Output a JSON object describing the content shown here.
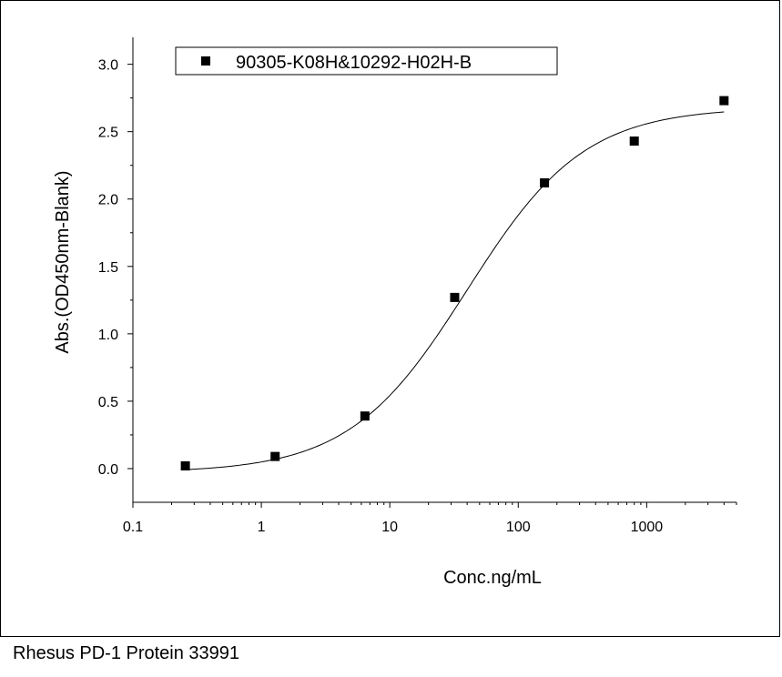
{
  "caption": "Rhesus PD-1 Protein 33991",
  "chart_data": {
    "type": "scatter",
    "xlabel": "Conc.ng/mL",
    "ylabel": "Abs.(OD450nm-Blank)",
    "xscale": "log",
    "xlim": [
      0.1,
      5000
    ],
    "ylim": [
      -0.25,
      3.2
    ],
    "xticks": [
      0.1,
      1,
      10,
      100,
      1000
    ],
    "xtick_labels": [
      "0.1",
      "1",
      "10",
      "100",
      "1000"
    ],
    "yticks": [
      0.0,
      0.5,
      1.0,
      1.5,
      2.0,
      2.5,
      3.0
    ],
    "ytick_labels": [
      "0.0",
      "0.5",
      "1.0",
      "1.5",
      "2.0",
      "2.5",
      "3.0"
    ],
    "legend_position": "top-left",
    "grid": false,
    "marker_color": "#000000",
    "series": [
      {
        "name": "90305-K08H&10292-H02H-B",
        "marker": "square",
        "x": [
          0.256,
          1.28,
          6.4,
          32,
          160,
          800,
          4000
        ],
        "y": [
          0.02,
          0.09,
          0.39,
          1.27,
          2.12,
          2.43,
          2.73
        ]
      }
    ],
    "fit_curve": {
      "model": "4PL",
      "bottom": -0.03,
      "top": 2.68,
      "ec50": 40,
      "hill": 0.95
    }
  }
}
